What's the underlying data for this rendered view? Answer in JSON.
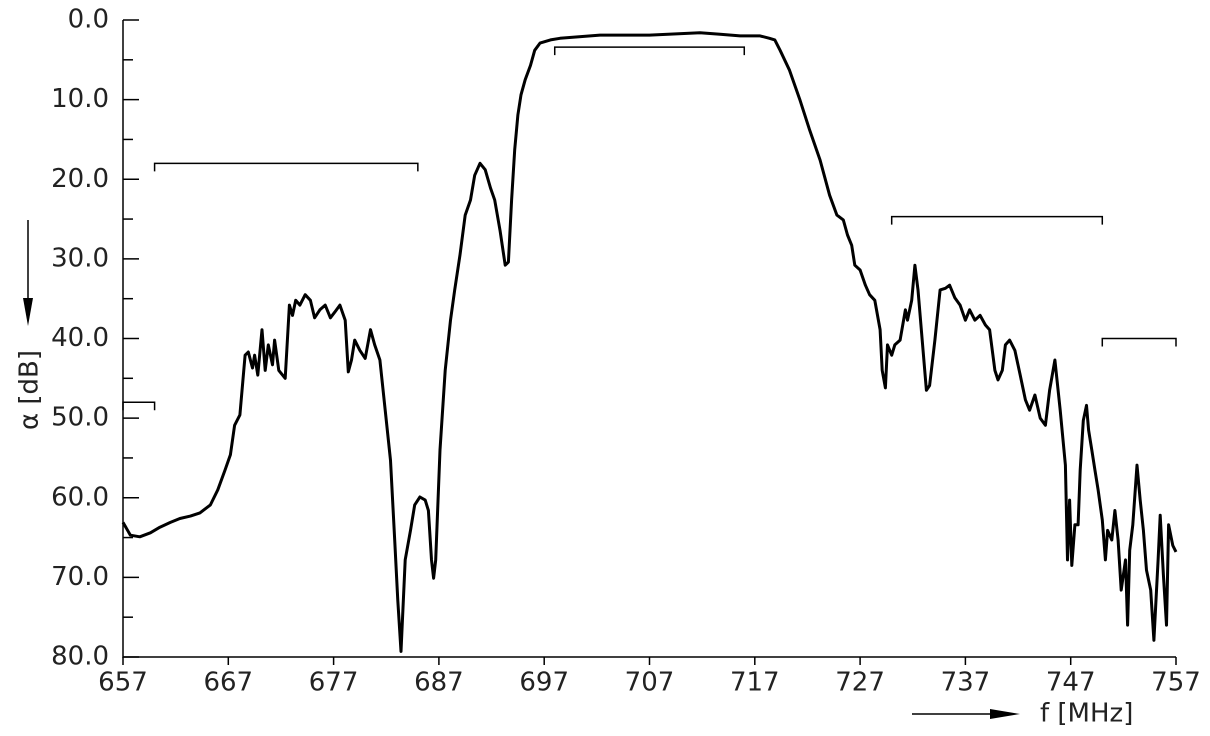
{
  "chart_data": {
    "type": "line",
    "color": "#000000",
    "x_label": "f [MHz]",
    "y_label": "α [dB]",
    "xlim": [
      657,
      757
    ],
    "xticks": [
      657,
      667,
      677,
      687,
      697,
      707,
      717,
      727,
      737,
      747,
      757
    ],
    "ylim": [
      0,
      80
    ],
    "y_inverted": true,
    "yticks": [
      {
        "value": 0,
        "label": "0.0"
      },
      {
        "value": 10,
        "label": "10.0"
      },
      {
        "value": 20,
        "label": "20.0"
      },
      {
        "value": 30,
        "label": "30.0"
      },
      {
        "value": 40,
        "label": "40.0"
      },
      {
        "value": 50,
        "label": "50.0"
      },
      {
        "value": 60,
        "label": "60.0"
      },
      {
        "value": 70,
        "label": "70.0"
      },
      {
        "value": 80,
        "label": "80.0"
      }
    ],
    "x": [
      657.0,
      657.7,
      658.6,
      659.6,
      660.5,
      661.5,
      662.4,
      663.4,
      664.3,
      665.3,
      666.0,
      666.7,
      667.2,
      667.6,
      668.1,
      668.6,
      668.9,
      669.3,
      669.5,
      669.8,
      670.2,
      670.5,
      670.8,
      671.2,
      671.4,
      671.8,
      672.4,
      672.8,
      673.1,
      673.4,
      673.8,
      674.3,
      674.8,
      675.2,
      675.7,
      676.2,
      676.7,
      677.1,
      677.6,
      678.1,
      678.4,
      678.7,
      679.0,
      679.5,
      680.0,
      680.5,
      680.9,
      681.4,
      681.9,
      682.4,
      682.8,
      683.1,
      683.4,
      683.8,
      684.3,
      684.7,
      685.2,
      685.7,
      686.0,
      686.3,
      686.5,
      686.7,
      687.1,
      687.6,
      688.1,
      688.5,
      689.0,
      689.5,
      690.0,
      690.4,
      690.9,
      691.4,
      691.9,
      692.3,
      692.8,
      693.3,
      693.6,
      693.9,
      694.2,
      694.5,
      694.8,
      695.2,
      695.7,
      696.1,
      696.6,
      697.6,
      698.5,
      702.3,
      707.0,
      711.8,
      713.7,
      715.6,
      717.5,
      718.4,
      718.9,
      719.4,
      720.3,
      721.3,
      722.2,
      723.2,
      724.1,
      724.8,
      725.4,
      725.8,
      726.2,
      726.5,
      727.0,
      727.5,
      727.9,
      728.4,
      728.9,
      729.1,
      729.4,
      729.6,
      730.0,
      730.3,
      730.8,
      731.3,
      731.5,
      731.9,
      732.2,
      732.5,
      732.9,
      733.3,
      733.6,
      734.1,
      734.6,
      735.1,
      735.5,
      736.0,
      736.5,
      737.0,
      737.4,
      737.9,
      738.4,
      738.9,
      739.3,
      739.8,
      740.1,
      740.5,
      740.8,
      741.2,
      741.7,
      742.2,
      742.7,
      743.1,
      743.6,
      744.1,
      744.6,
      745.0,
      745.5,
      746.0,
      746.5,
      746.7,
      746.9,
      747.1,
      747.4,
      747.7,
      747.9,
      748.2,
      748.5,
      748.7,
      749.0,
      749.3,
      749.6,
      750.0,
      750.3,
      750.5,
      750.9,
      751.2,
      751.5,
      751.8,
      752.2,
      752.4,
      752.6,
      752.9,
      753.3,
      753.6,
      753.9,
      754.2,
      754.6,
      754.9,
      755.3,
      755.5,
      755.8,
      756.1,
      756.3,
      756.7,
      757.0
    ],
    "values": [
      63.1,
      64.7,
      64.9,
      64.4,
      63.7,
      63.1,
      62.6,
      62.3,
      61.9,
      60.9,
      59.0,
      56.5,
      54.6,
      50.9,
      49.6,
      42.1,
      41.7,
      43.7,
      42.1,
      44.6,
      38.9,
      44.0,
      40.8,
      43.3,
      40.2,
      44.0,
      45.0,
      35.8,
      37.1,
      35.2,
      35.8,
      34.5,
      35.2,
      37.4,
      36.4,
      35.8,
      37.4,
      36.7,
      35.8,
      37.7,
      44.2,
      42.7,
      40.2,
      41.5,
      42.5,
      38.9,
      40.8,
      42.7,
      49.0,
      55.3,
      65.3,
      72.9,
      79.3,
      67.8,
      64.1,
      60.9,
      59.9,
      60.3,
      61.6,
      67.8,
      70.1,
      67.8,
      54.0,
      44.0,
      37.7,
      33.9,
      29.5,
      24.5,
      22.6,
      19.5,
      18.0,
      18.8,
      21.1,
      22.6,
      26.4,
      30.8,
      30.4,
      22.6,
      16.3,
      11.9,
      9.4,
      7.5,
      5.7,
      3.8,
      2.9,
      2.5,
      2.3,
      1.9,
      1.9,
      1.6,
      1.8,
      2.0,
      2.0,
      2.3,
      2.5,
      3.8,
      6.3,
      10.1,
      13.8,
      17.6,
      22.0,
      24.5,
      25.1,
      27.0,
      28.3,
      30.8,
      31.4,
      33.3,
      34.5,
      35.2,
      38.9,
      44.0,
      46.2,
      40.8,
      42.1,
      40.8,
      40.2,
      36.4,
      37.7,
      35.2,
      30.8,
      33.9,
      40.2,
      46.5,
      45.9,
      40.2,
      33.9,
      33.7,
      33.3,
      34.9,
      35.8,
      37.7,
      36.4,
      37.7,
      37.1,
      38.3,
      38.9,
      44.0,
      45.2,
      44.0,
      40.8,
      40.2,
      41.5,
      44.6,
      47.7,
      49.0,
      47.1,
      50.0,
      50.9,
      46.5,
      42.7,
      49.0,
      55.9,
      67.8,
      60.3,
      68.5,
      63.4,
      63.4,
      56.5,
      50.3,
      48.4,
      51.5,
      54.0,
      56.5,
      59.0,
      62.8,
      67.8,
      64.1,
      65.3,
      61.6,
      65.3,
      71.6,
      67.8,
      76.0,
      66.6,
      63.4,
      55.9,
      60.3,
      64.1,
      69.1,
      71.6,
      77.9,
      67.8,
      62.2,
      69.7,
      76.0,
      63.4,
      66.0,
      66.8
    ],
    "limits": [
      {
        "x": [
          657,
          660
        ],
        "y": 48
      },
      {
        "x": [
          660,
          685
        ],
        "y": 18
      },
      {
        "x": [
          698,
          716
        ],
        "y": 3.4
      },
      {
        "x": [
          730,
          750
        ],
        "y": 24.7
      },
      {
        "x": [
          750,
          757
        ],
        "y": 40
      }
    ]
  }
}
